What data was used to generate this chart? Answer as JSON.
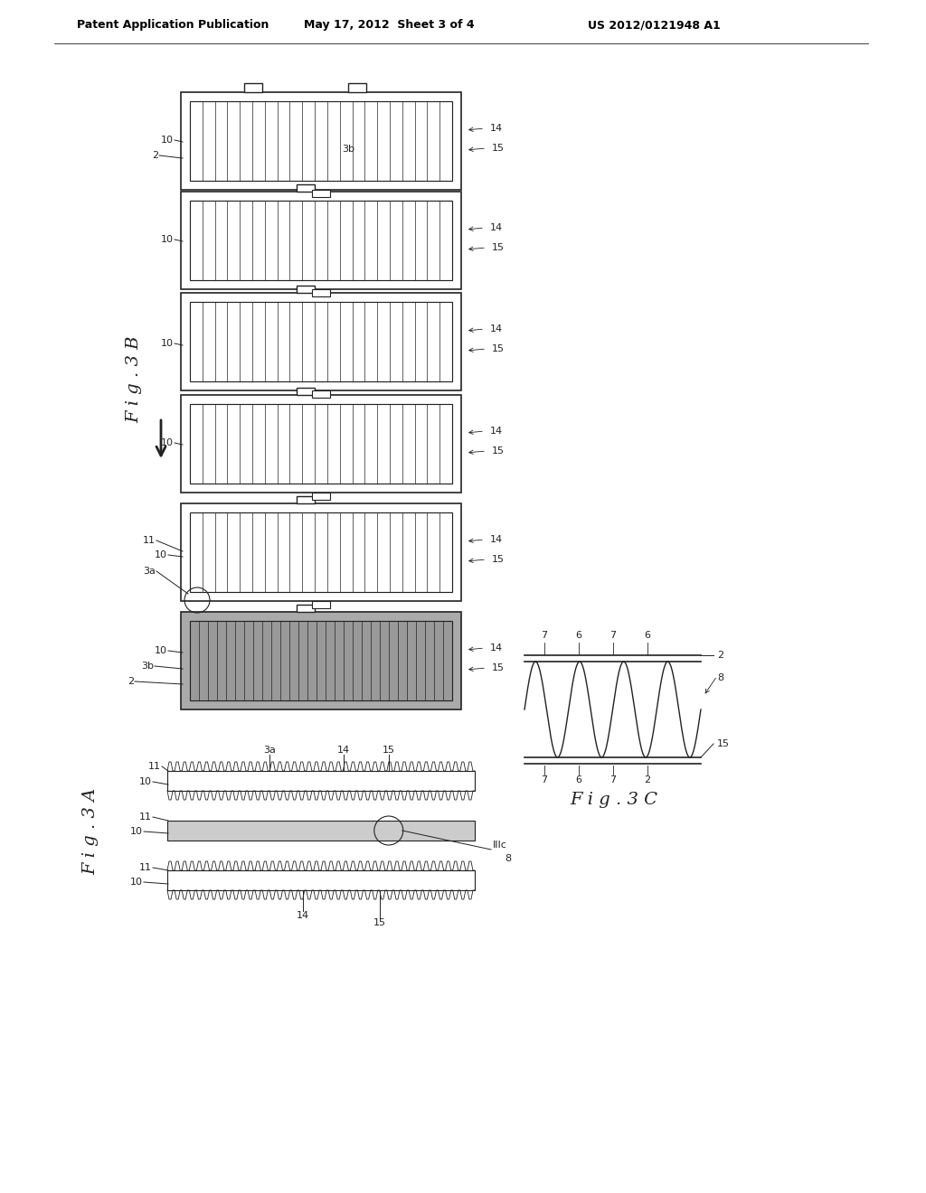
{
  "bg_color": "#ffffff",
  "header_left": "Patent Application Publication",
  "header_mid": "May 17, 2012  Sheet 3 of 4",
  "header_right": "US 2012/0121948 A1",
  "line_color": "#222222"
}
